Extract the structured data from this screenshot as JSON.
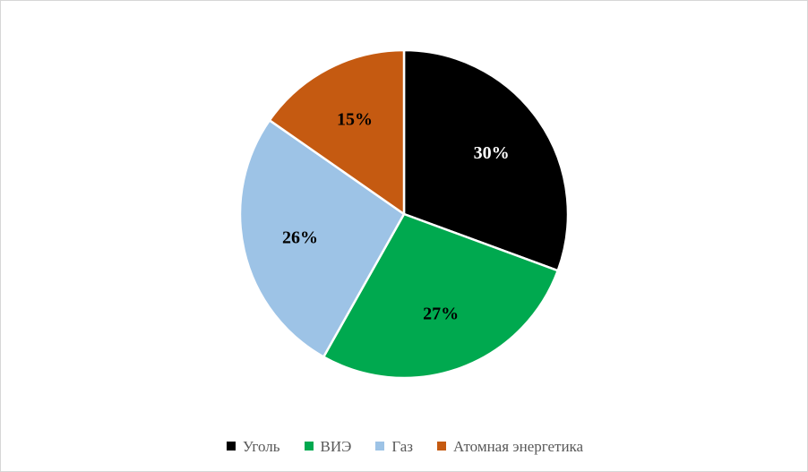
{
  "chart_data": {
    "type": "pie",
    "title": "",
    "legend_position": "bottom",
    "slice_border_color": "#FFFFFF",
    "background_color": "#FFFFFF",
    "frame_border_color": "#D6D6D6",
    "legend_text_color": "#595959",
    "start_angle_deg": 0,
    "direction": "clockwise",
    "slices": [
      {
        "label": "Уголь",
        "value": 30,
        "display": "30%",
        "color": "#000000",
        "label_color": "#FFFFFF"
      },
      {
        "label": "ВИЭ",
        "value": 27,
        "display": "27%",
        "color": "#00A94F",
        "label_color": "#000000"
      },
      {
        "label": "Газ",
        "value": 26,
        "display": "26%",
        "color": "#9DC3E6",
        "label_color": "#000000"
      },
      {
        "label": "Атомная энергетика",
        "value": 15,
        "display": "15%",
        "color": "#C55A11",
        "label_color": "#000000"
      }
    ]
  }
}
